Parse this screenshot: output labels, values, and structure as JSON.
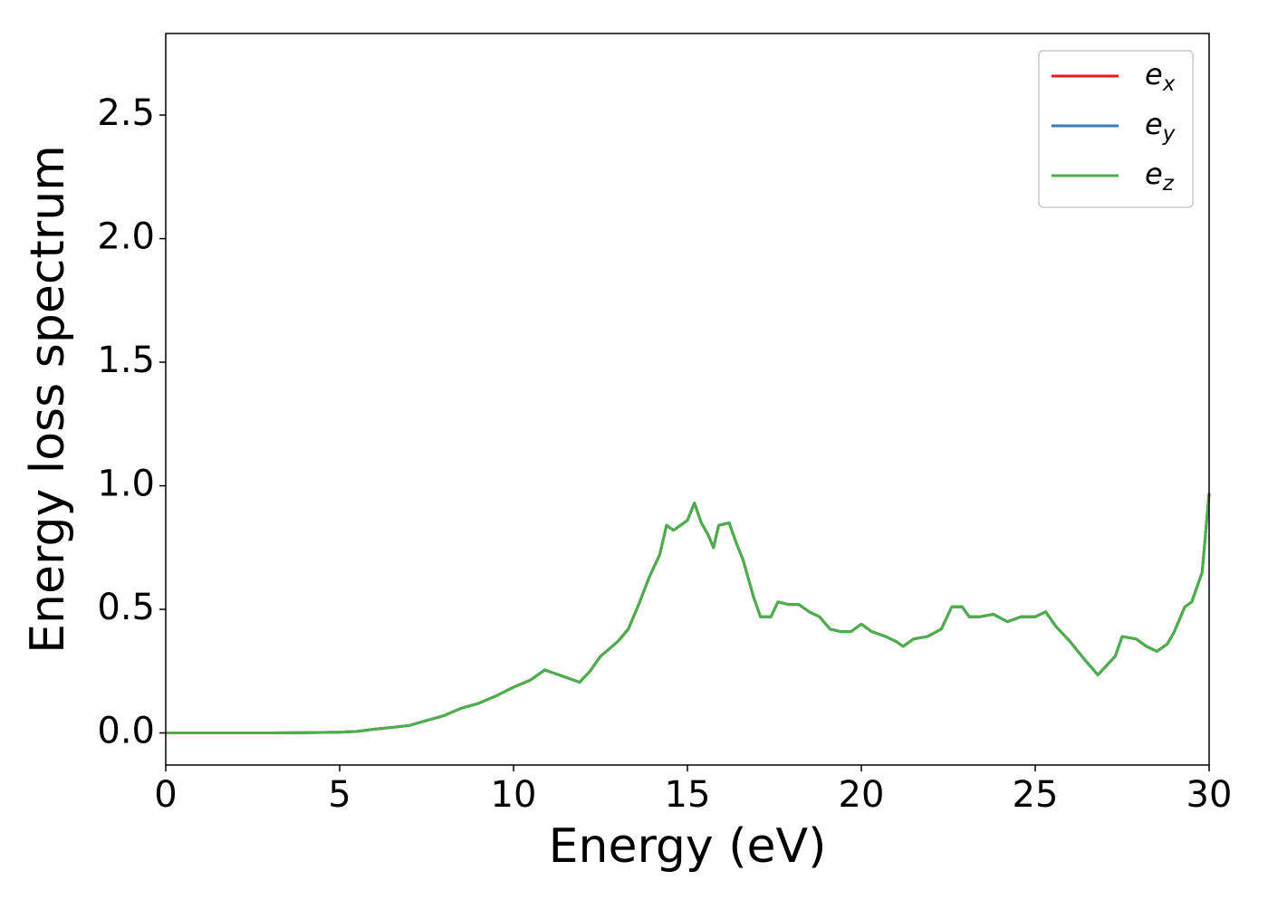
{
  "chart_data": {
    "type": "line",
    "xlabel": "Energy (eV)",
    "ylabel": "Energy loss spectrum",
    "x": [
      0,
      1,
      2,
      3,
      4,
      5,
      5.5,
      6,
      6.5,
      7,
      7.5,
      8,
      8.5,
      9,
      9.5,
      10,
      10.5,
      10.9,
      11.2,
      11.5,
      11.9,
      12.2,
      12.5,
      13,
      13.3,
      13.6,
      13.9,
      14.2,
      14.4,
      14.6,
      14.8,
      15,
      15.2,
      15.4,
      15.6,
      15.75,
      15.9,
      16.2,
      16.4,
      16.6,
      16.9,
      17.1,
      17.4,
      17.6,
      17.9,
      18.2,
      18.5,
      18.8,
      19.1,
      19.4,
      19.7,
      20,
      20.3,
      20.7,
      21,
      21.2,
      21.5,
      21.9,
      22.3,
      22.6,
      22.9,
      23.1,
      23.4,
      23.8,
      24.2,
      24.6,
      25,
      25.3,
      25.6,
      26,
      26.4,
      26.8,
      27.1,
      27.3,
      27.5,
      27.9,
      28.2,
      28.5,
      28.8,
      29,
      29.3,
      29.5,
      29.8,
      30
    ],
    "series": [
      {
        "name": "e_x",
        "color": "#e41a1c",
        "values": [
          0,
          0,
          0,
          0,
          0.001,
          0.003,
          0.006,
          0.015,
          0.022,
          0.03,
          0.05,
          0.07,
          0.1,
          0.12,
          0.15,
          0.185,
          0.215,
          0.255,
          0.24,
          0.225,
          0.205,
          0.25,
          0.31,
          0.37,
          0.42,
          0.52,
          0.63,
          0.72,
          0.84,
          0.82,
          0.84,
          0.86,
          0.93,
          0.85,
          0.8,
          0.75,
          0.84,
          0.85,
          0.77,
          0.7,
          0.55,
          0.47,
          0.47,
          0.53,
          0.52,
          0.52,
          0.49,
          0.47,
          0.42,
          0.41,
          0.41,
          0.44,
          0.41,
          0.39,
          0.37,
          0.35,
          0.38,
          0.39,
          0.42,
          0.51,
          0.51,
          0.47,
          0.47,
          0.48,
          0.45,
          0.47,
          0.47,
          0.49,
          0.43,
          0.37,
          0.3,
          0.235,
          0.28,
          0.31,
          0.39,
          0.38,
          0.35,
          0.33,
          0.36,
          0.41,
          0.51,
          0.53,
          0.65,
          0.97
        ]
      },
      {
        "name": "e_y",
        "color": "#377eb8",
        "values": [
          0,
          0,
          0,
          0,
          0.001,
          0.003,
          0.006,
          0.015,
          0.022,
          0.03,
          0.05,
          0.07,
          0.1,
          0.12,
          0.15,
          0.185,
          0.215,
          0.255,
          0.24,
          0.225,
          0.205,
          0.25,
          0.31,
          0.37,
          0.42,
          0.52,
          0.63,
          0.72,
          0.84,
          0.82,
          0.84,
          0.86,
          0.93,
          0.85,
          0.8,
          0.75,
          0.84,
          0.85,
          0.77,
          0.7,
          0.55,
          0.47,
          0.47,
          0.53,
          0.52,
          0.52,
          0.49,
          0.47,
          0.42,
          0.41,
          0.41,
          0.44,
          0.41,
          0.39,
          0.37,
          0.35,
          0.38,
          0.39,
          0.42,
          0.51,
          0.51,
          0.47,
          0.47,
          0.48,
          0.45,
          0.47,
          0.47,
          0.49,
          0.43,
          0.37,
          0.3,
          0.235,
          0.28,
          0.31,
          0.39,
          0.38,
          0.35,
          0.33,
          0.36,
          0.41,
          0.51,
          0.53,
          0.65,
          0.97
        ]
      },
      {
        "name": "e_z",
        "color": "#4daf4a",
        "values": [
          0,
          0,
          0,
          0,
          0.001,
          0.003,
          0.006,
          0.015,
          0.022,
          0.03,
          0.05,
          0.07,
          0.1,
          0.12,
          0.15,
          0.185,
          0.215,
          0.255,
          0.24,
          0.225,
          0.205,
          0.25,
          0.31,
          0.37,
          0.42,
          0.52,
          0.63,
          0.72,
          0.84,
          0.82,
          0.84,
          0.86,
          0.93,
          0.85,
          0.8,
          0.75,
          0.84,
          0.85,
          0.77,
          0.7,
          0.55,
          0.47,
          0.47,
          0.53,
          0.52,
          0.52,
          0.49,
          0.47,
          0.42,
          0.41,
          0.41,
          0.44,
          0.41,
          0.39,
          0.37,
          0.35,
          0.38,
          0.39,
          0.42,
          0.51,
          0.51,
          0.47,
          0.47,
          0.48,
          0.45,
          0.47,
          0.47,
          0.49,
          0.43,
          0.37,
          0.3,
          0.235,
          0.28,
          0.31,
          0.39,
          0.38,
          0.35,
          0.33,
          0.36,
          0.41,
          0.51,
          0.53,
          0.65,
          0.97
        ]
      }
    ],
    "xlim": [
      0,
      30
    ],
    "xticks": [
      0,
      5,
      10,
      15,
      20,
      25,
      30
    ],
    "ylim": [
      -0.13,
      2.83
    ],
    "yticks": [
      {
        "value": 0,
        "label": "0.0"
      },
      {
        "value": 0.5,
        "label": "0.5"
      },
      {
        "value": 1,
        "label": "1.0"
      },
      {
        "value": 1.5,
        "label": "1.5"
      },
      {
        "value": 2,
        "label": "2.0"
      },
      {
        "value": 2.5,
        "label": "2.5"
      }
    ],
    "legend": "upper right",
    "grid": false
  }
}
